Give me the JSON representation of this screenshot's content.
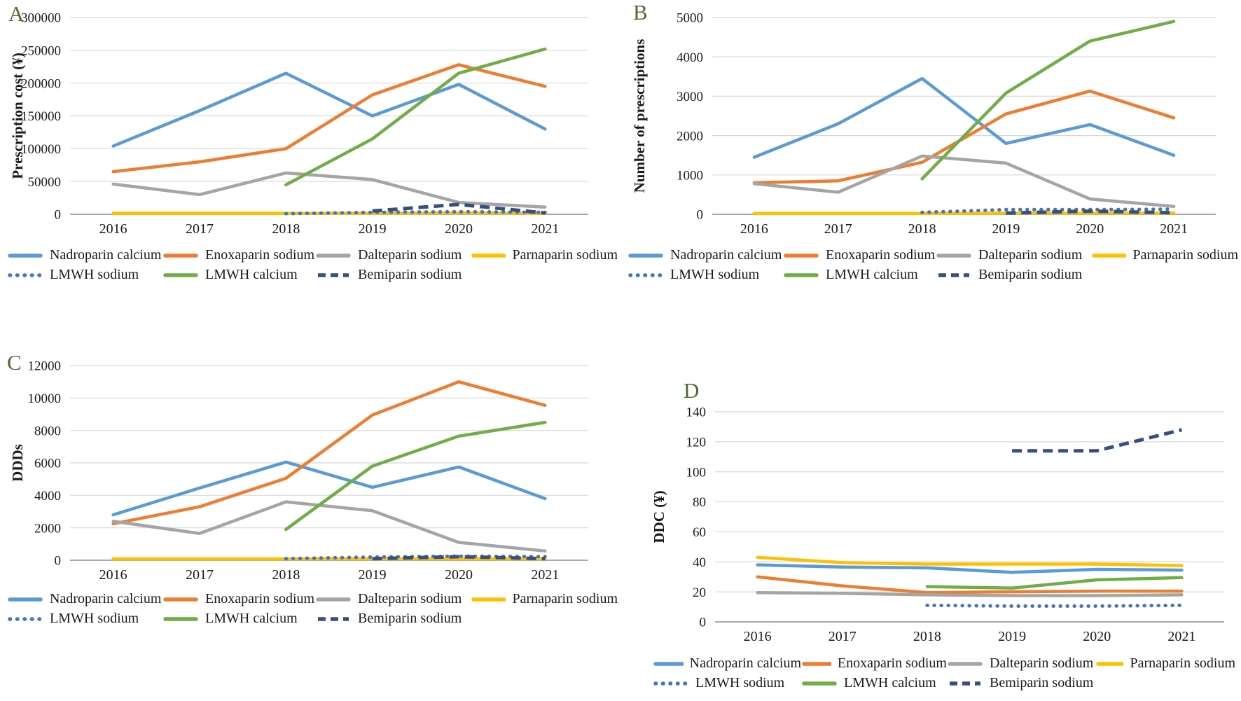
{
  "panel_letter_color": "#4f6b2f",
  "axis": {
    "grid_color": "#d8d8d8",
    "baseline_color": "#a9a9a9",
    "years": [
      "2016",
      "2017",
      "2018",
      "2019",
      "2020",
      "2021"
    ]
  },
  "series_styles": [
    {
      "name": "Nadroparin calcium",
      "color": "#5B9BD5",
      "line_style": "solid"
    },
    {
      "name": "Enoxaparin sodium",
      "color": "#ED7D31",
      "line_style": "solid"
    },
    {
      "name": "Dalteparin sodium",
      "color": "#A5A5A5",
      "line_style": "solid"
    },
    {
      "name": "Parnaparin sodium",
      "color": "#FFC000",
      "line_style": "solid"
    },
    {
      "name": "LMWH sodium",
      "color": "#4472C4",
      "line_style": "dotted"
    },
    {
      "name": "LMWH calcium",
      "color": "#70AD47",
      "line_style": "solid"
    },
    {
      "name": "Bemiparin sodium",
      "color": "#35507F",
      "line_style": "dashed"
    }
  ],
  "chart_data": [
    {
      "type": "line",
      "panel_label": "A",
      "title": "",
      "xlabel": "",
      "ylabel": "Prescription cost (¥)",
      "categories": [
        "2016",
        "2017",
        "2018",
        "2019",
        "2020",
        "2021"
      ],
      "ylim": [
        0,
        300000
      ],
      "ytick_step": 50000,
      "grid": true,
      "legend_position": "bottom",
      "series": [
        {
          "name": "Nadroparin calcium",
          "values": [
            104000,
            158000,
            215000,
            150000,
            198000,
            130000
          ]
        },
        {
          "name": "Enoxaparin sodium",
          "values": [
            65000,
            80000,
            100000,
            182000,
            228000,
            195000
          ]
        },
        {
          "name": "Dalteparin sodium",
          "values": [
            46000,
            30000,
            63000,
            53000,
            18000,
            11000
          ]
        },
        {
          "name": "Parnaparin sodium",
          "values": [
            1500,
            1500,
            1500,
            1500,
            2000,
            1500
          ]
        },
        {
          "name": "LMWH sodium",
          "values": [
            null,
            null,
            1000,
            3000,
            4000,
            3000
          ]
        },
        {
          "name": "LMWH calcium",
          "values": [
            null,
            null,
            45000,
            115000,
            215000,
            252000
          ]
        },
        {
          "name": "Bemiparin sodium",
          "values": [
            null,
            null,
            null,
            5000,
            15000,
            2000
          ]
        }
      ]
    },
    {
      "type": "line",
      "panel_label": "B",
      "title": "",
      "xlabel": "",
      "ylabel": "Number of prescriptions",
      "categories": [
        "2016",
        "2017",
        "2018",
        "2019",
        "2020",
        "2021"
      ],
      "ylim": [
        0,
        5000
      ],
      "ytick_step": 1000,
      "grid": true,
      "legend_position": "bottom",
      "series": [
        {
          "name": "Nadroparin calcium",
          "values": [
            1450,
            2300,
            3450,
            1800,
            2280,
            1500
          ]
        },
        {
          "name": "Enoxaparin sodium",
          "values": [
            800,
            850,
            1320,
            2550,
            3130,
            2450
          ]
        },
        {
          "name": "Dalteparin sodium",
          "values": [
            780,
            560,
            1480,
            1300,
            390,
            200
          ]
        },
        {
          "name": "Parnaparin sodium",
          "values": [
            20,
            20,
            20,
            30,
            30,
            30
          ]
        },
        {
          "name": "LMWH sodium",
          "values": [
            null,
            null,
            50,
            120,
            120,
            130
          ]
        },
        {
          "name": "LMWH calcium",
          "values": [
            null,
            null,
            900,
            3080,
            4400,
            4900
          ]
        },
        {
          "name": "Bemiparin sodium",
          "values": [
            null,
            null,
            null,
            30,
            80,
            40
          ]
        }
      ]
    },
    {
      "type": "line",
      "panel_label": "C",
      "title": "",
      "xlabel": "",
      "ylabel": "DDDs",
      "categories": [
        "2016",
        "2017",
        "2018",
        "2019",
        "2020",
        "2021"
      ],
      "ylim": [
        0,
        12000
      ],
      "ytick_step": 2000,
      "grid": true,
      "legend_position": "bottom",
      "series": [
        {
          "name": "Nadroparin calcium",
          "values": [
            2800,
            4450,
            6050,
            4500,
            5750,
            3800
          ]
        },
        {
          "name": "Enoxaparin sodium",
          "values": [
            2250,
            3300,
            5050,
            8950,
            11000,
            9550
          ]
        },
        {
          "name": "Dalteparin sodium",
          "values": [
            2400,
            1650,
            3600,
            3050,
            1100,
            570
          ]
        },
        {
          "name": "Parnaparin sodium",
          "values": [
            80,
            80,
            80,
            90,
            90,
            80
          ]
        },
        {
          "name": "LMWH sodium",
          "values": [
            null,
            null,
            100,
            200,
            250,
            220
          ]
        },
        {
          "name": "LMWH calcium",
          "values": [
            null,
            null,
            1900,
            5800,
            7650,
            8500
          ]
        },
        {
          "name": "Bemiparin sodium",
          "values": [
            null,
            null,
            null,
            100,
            220,
            100
          ]
        }
      ]
    },
    {
      "type": "line",
      "panel_label": "D",
      "title": "",
      "xlabel": "",
      "ylabel": "DDC (¥)",
      "categories": [
        "2016",
        "2017",
        "2018",
        "2019",
        "2020",
        "2021"
      ],
      "ylim": [
        0,
        140
      ],
      "ytick_step": 20,
      "grid": true,
      "legend_position": "bottom",
      "series": [
        {
          "name": "Nadroparin calcium",
          "values": [
            38,
            36.5,
            36,
            33,
            35,
            34.5
          ]
        },
        {
          "name": "Enoxaparin sodium",
          "values": [
            30,
            24,
            19.5,
            20,
            20.5,
            20.5
          ]
        },
        {
          "name": "Dalteparin sodium",
          "values": [
            19.5,
            19,
            18,
            17.5,
            17.5,
            18
          ]
        },
        {
          "name": "Parnaparin sodium",
          "values": [
            43,
            39.5,
            38.5,
            38.5,
            38.5,
            37.5
          ]
        },
        {
          "name": "LMWH sodium",
          "values": [
            null,
            null,
            11,
            10.5,
            10.5,
            11
          ]
        },
        {
          "name": "LMWH calcium",
          "values": [
            null,
            null,
            23.5,
            22.5,
            28,
            29.5
          ]
        },
        {
          "name": "Bemiparin sodium",
          "values": [
            null,
            null,
            null,
            114,
            114,
            128
          ]
        }
      ]
    }
  ]
}
